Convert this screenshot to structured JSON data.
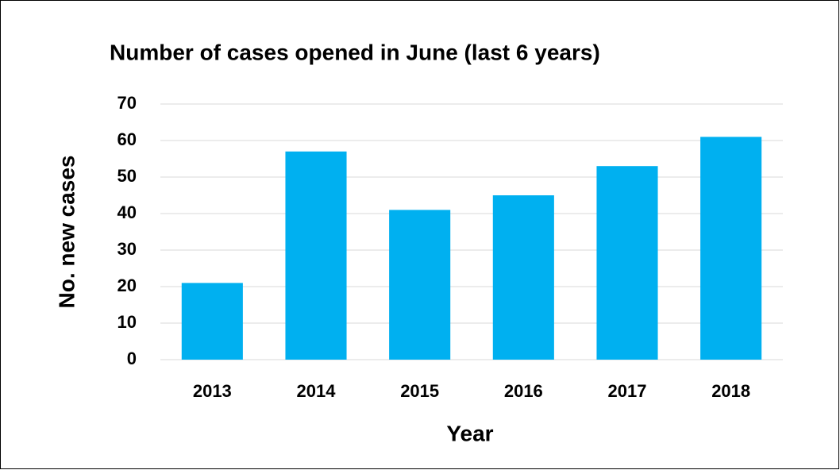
{
  "chart_data": {
    "type": "bar",
    "title": "Number of cases opened in June (last 6 years)",
    "x_label": "Year",
    "y_label": "No. new cases",
    "categories": [
      "2013",
      "2014",
      "2015",
      "2016",
      "2017",
      "2018"
    ],
    "values": [
      21,
      57,
      41,
      45,
      53,
      61
    ],
    "color": "#00b0f0",
    "ylim": [
      0,
      70
    ],
    "yticks": [
      0,
      10,
      20,
      30,
      40,
      50,
      60,
      70
    ],
    "grid": true
  }
}
